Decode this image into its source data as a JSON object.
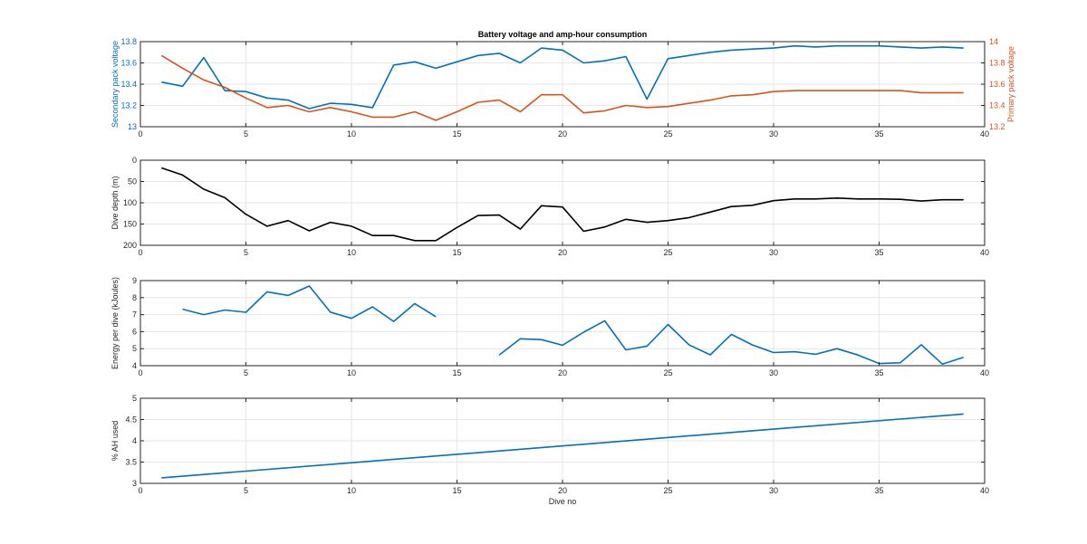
{
  "chart_data": [
    {
      "type": "line",
      "title": "Battery voltage and amp-hour consumption",
      "xlabel": "",
      "xlim": [
        0,
        40
      ],
      "xticks": [
        "0",
        "5",
        "10",
        "15",
        "20",
        "25",
        "30",
        "35",
        "40"
      ],
      "grid": true,
      "x": [
        1,
        2,
        3,
        4,
        5,
        6,
        7,
        8,
        9,
        10,
        11,
        12,
        13,
        14,
        15,
        16,
        17,
        18,
        19,
        20,
        21,
        22,
        23,
        24,
        25,
        26,
        27,
        28,
        29,
        30,
        31,
        32,
        33,
        34,
        35,
        36,
        37,
        38,
        39
      ],
      "left_axis": {
        "ylabel": "Secondary pack voltage",
        "ylim": [
          13,
          13.8
        ],
        "yticks": [
          "13",
          "13.2",
          "13.4",
          "13.6",
          "13.8"
        ],
        "color": "#0072BD"
      },
      "right_axis": {
        "ylabel": "Primary pack voltage",
        "ylim": [
          13.2,
          14
        ],
        "yticks": [
          "13.2",
          "13.4",
          "13.6",
          "13.8",
          "14"
        ],
        "color": "#D95319"
      },
      "series": [
        {
          "axis": "left",
          "color": "#0072BD",
          "values": [
            13.42,
            13.38,
            13.65,
            13.34,
            13.33,
            13.27,
            13.25,
            13.17,
            13.22,
            13.21,
            13.18,
            13.58,
            13.61,
            13.55,
            13.61,
            13.67,
            13.69,
            13.6,
            13.74,
            13.72,
            13.6,
            13.62,
            13.66,
            13.26,
            13.64,
            13.67,
            13.7,
            13.72,
            13.73,
            13.74,
            13.76,
            13.75,
            13.76,
            13.76,
            13.76,
            13.75,
            13.74,
            13.75,
            13.74
          ]
        },
        {
          "axis": "right",
          "color": "#D95319",
          "values": [
            13.87,
            13.75,
            13.64,
            13.57,
            13.47,
            13.38,
            13.4,
            13.34,
            13.38,
            13.34,
            13.29,
            13.29,
            13.34,
            13.26,
            13.34,
            13.43,
            13.45,
            13.34,
            13.5,
            13.5,
            13.33,
            13.35,
            13.4,
            13.38,
            13.39,
            13.42,
            13.45,
            13.49,
            13.5,
            13.53,
            13.54,
            13.54,
            13.54,
            13.54,
            13.54,
            13.54,
            13.52,
            13.52,
            13.52
          ]
        }
      ]
    },
    {
      "type": "line",
      "title": "",
      "xlim": [
        0,
        40
      ],
      "xticks": [
        "0",
        "5",
        "10",
        "15",
        "20",
        "25",
        "30",
        "35",
        "40"
      ],
      "ylabel": "Dive depth (m)",
      "ylim": [
        0,
        200
      ],
      "y_reversed": true,
      "yticks": [
        "0",
        "50",
        "100",
        "150",
        "200"
      ],
      "grid": true,
      "x": [
        1,
        2,
        3,
        4,
        5,
        6,
        7,
        8,
        9,
        10,
        11,
        12,
        13,
        14,
        15,
        16,
        17,
        18,
        19,
        20,
        21,
        22,
        23,
        24,
        25,
        26,
        27,
        28,
        29,
        30,
        31,
        32,
        33,
        34,
        35,
        36,
        37,
        38,
        39
      ],
      "series": [
        {
          "color": "#000000",
          "values": [
            18,
            35,
            68,
            88,
            127,
            155,
            142,
            166,
            146,
            155,
            177,
            177,
            189,
            189,
            158,
            130,
            129,
            162,
            107,
            110,
            167,
            157,
            139,
            146,
            142,
            135,
            122,
            109,
            106,
            95,
            91,
            91,
            89,
            91,
            91,
            92,
            96,
            93,
            93
          ]
        }
      ]
    },
    {
      "type": "line",
      "title": "",
      "xlim": [
        0,
        40
      ],
      "xticks": [
        "0",
        "5",
        "10",
        "15",
        "20",
        "25",
        "30",
        "35",
        "40"
      ],
      "ylabel": "Energy per dive (kJoules)",
      "ylim": [
        4,
        9
      ],
      "yticks": [
        "4",
        "5",
        "6",
        "7",
        "8",
        "9"
      ],
      "grid": true,
      "series": [
        {
          "color": "#0072BD",
          "x": [
            2,
            3,
            4,
            5,
            6,
            7,
            8,
            9,
            10,
            11,
            12,
            13,
            14
          ],
          "values": [
            7.32,
            7.0,
            7.27,
            7.14,
            8.34,
            8.13,
            8.68,
            7.15,
            6.78,
            7.46,
            6.6,
            7.65,
            6.88
          ]
        },
        {
          "color": "#0072BD",
          "x": [
            17,
            18,
            19,
            20,
            21,
            22,
            23,
            24,
            25,
            26,
            27,
            28,
            29,
            30,
            31,
            32,
            33,
            34,
            35,
            36,
            37,
            38,
            39
          ],
          "values": [
            4.63,
            5.58,
            5.53,
            5.2,
            5.97,
            6.64,
            4.93,
            5.15,
            6.42,
            5.22,
            4.64,
            5.84,
            5.22,
            4.77,
            4.82,
            4.67,
            5.0,
            4.63,
            4.13,
            4.17,
            5.23,
            4.09,
            4.49
          ]
        }
      ]
    },
    {
      "type": "line",
      "title": "",
      "xlabel": "Dive no",
      "xlim": [
        0,
        40
      ],
      "xticks": [
        "0",
        "5",
        "10",
        "15",
        "20",
        "25",
        "30",
        "35",
        "40"
      ],
      "ylabel": "% AH used",
      "ylim": [
        3,
        5
      ],
      "yticks": [
        "3",
        "3.5",
        "4",
        "4.5",
        "5"
      ],
      "grid": true,
      "x": [
        1,
        39
      ],
      "series": [
        {
          "color": "#0072BD",
          "values": [
            3.13,
            4.63
          ]
        }
      ]
    }
  ]
}
